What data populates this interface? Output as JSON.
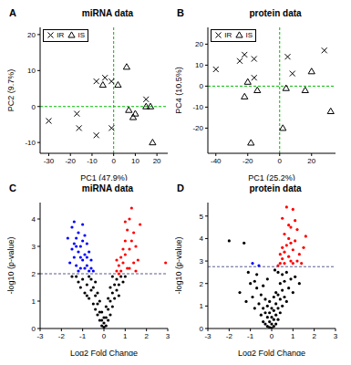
{
  "chart_data": [
    {
      "type": "scatter",
      "panel": "A",
      "title": "miRNA data",
      "x_label": "PC1 (47.9%)",
      "y_label": "PC2 (9.7%)",
      "xlim": [
        -34,
        25
      ],
      "ylim": [
        -13,
        22
      ],
      "xticks": [
        -30,
        -20,
        -10,
        0,
        10,
        20
      ],
      "yticks": [
        -10,
        0,
        10,
        20
      ],
      "legend": "top-left",
      "reference_lines": {
        "x": 0,
        "y": 0
      },
      "series": [
        {
          "name": "IR",
          "marker": "x",
          "color": "#000000",
          "points": [
            [
              -30,
              -4
            ],
            [
              -17,
              -2
            ],
            [
              -16,
              -6
            ],
            [
              -8,
              -8
            ],
            [
              -8,
              7
            ],
            [
              -4,
              8
            ],
            [
              -1,
              7
            ],
            [
              -1,
              -6
            ],
            [
              15,
              2
            ]
          ]
        },
        {
          "name": "IS",
          "marker": "triangle",
          "color": "#000000",
          "points": [
            [
              -5,
              6
            ],
            [
              2,
              6
            ],
            [
              6,
              11
            ],
            [
              7,
              -1
            ],
            [
              9,
              -3
            ],
            [
              15,
              0
            ],
            [
              17,
              0
            ],
            [
              18,
              -10
            ],
            [
              10,
              -2
            ]
          ]
        }
      ]
    },
    {
      "type": "scatter",
      "panel": "B",
      "title": "protein data",
      "x_label": "PC1 (25.2%)",
      "y_label": "PC4 (10.5%)",
      "xlim": [
        -45,
        35
      ],
      "ylim": [
        -32,
        28
      ],
      "xticks": [
        -40,
        -20,
        0,
        20
      ],
      "yticks": [
        -20,
        -10,
        0,
        10,
        20
      ],
      "legend": "top-left",
      "reference_lines": {
        "x": 0,
        "y": 0
      },
      "series": [
        {
          "name": "IR",
          "marker": "x",
          "color": "#000000",
          "points": [
            [
              -40,
              8
            ],
            [
              -25,
              12
            ],
            [
              -22,
              15
            ],
            [
              -16,
              13
            ],
            [
              -16,
              4
            ],
            [
              5,
              14
            ],
            [
              8,
              6
            ],
            [
              28,
              17
            ]
          ]
        },
        {
          "name": "IS",
          "marker": "triangle",
          "color": "#000000",
          "points": [
            [
              -22,
              -5
            ],
            [
              -18,
              -27
            ],
            [
              -14,
              -2
            ],
            [
              -20,
              2
            ],
            [
              2,
              -20
            ],
            [
              4,
              -1
            ],
            [
              16,
              -2
            ],
            [
              20,
              7
            ],
            [
              32,
              -12
            ]
          ]
        }
      ]
    },
    {
      "type": "scatter",
      "panel": "C",
      "title": "miRNA data",
      "x_label": "Log2 Fold Change",
      "y_label": "-log10 (p-value)",
      "xlim": [
        -3,
        3
      ],
      "ylim": [
        0,
        4.6
      ],
      "xticks": [
        -3,
        -2,
        -1,
        0,
        1,
        2,
        3
      ],
      "yticks": [
        0,
        1,
        2,
        3,
        4
      ],
      "reference_lines": {
        "y": 2
      },
      "series": [
        {
          "marker": "circle",
          "color": "#000000",
          "points": [
            [
              -1.3,
              1.9
            ],
            [
              -1.2,
              1.7
            ],
            [
              -1.1,
              1.5
            ],
            [
              -1.0,
              1.8
            ],
            [
              -0.9,
              1.3
            ],
            [
              -0.8,
              1.6
            ],
            [
              -0.7,
              1.1
            ],
            [
              -0.6,
              1.4
            ],
            [
              -0.5,
              0.9
            ],
            [
              -0.4,
              1.2
            ],
            [
              -0.4,
              0.7
            ],
            [
              -0.3,
              0.5
            ],
            [
              -0.3,
              0.9
            ],
            [
              -0.2,
              0.3
            ],
            [
              -0.2,
              0.6
            ],
            [
              -0.1,
              0.1
            ],
            [
              -0.1,
              0.3
            ],
            [
              0.0,
              0.05
            ],
            [
              0.0,
              0.2
            ],
            [
              0.1,
              0.1
            ],
            [
              0.1,
              0.4
            ],
            [
              0.2,
              0.3
            ],
            [
              0.2,
              0.7
            ],
            [
              0.3,
              0.5
            ],
            [
              0.3,
              1.0
            ],
            [
              0.4,
              0.8
            ],
            [
              0.4,
              1.3
            ],
            [
              0.5,
              1.1
            ],
            [
              0.5,
              1.6
            ],
            [
              0.6,
              1.4
            ],
            [
              0.6,
              1.8
            ],
            [
              0.7,
              1.6
            ],
            [
              0.8,
              1.9
            ],
            [
              0.9,
              1.7
            ],
            [
              1.0,
              1.9
            ],
            [
              -0.5,
              1.5
            ],
            [
              -0.6,
              1.8
            ],
            [
              -0.7,
              1.9
            ],
            [
              -0.4,
              1.7
            ],
            [
              -0.3,
              1.3
            ],
            [
              -0.2,
              1.0
            ],
            [
              -0.1,
              0.6
            ],
            [
              0.0,
              0.4
            ],
            [
              0.1,
              0.8
            ],
            [
              0.2,
              1.1
            ],
            [
              0.3,
              1.5
            ],
            [
              0.4,
              1.9
            ],
            [
              -1.5,
              1.9
            ],
            [
              -0.8,
              1.2
            ],
            [
              0.7,
              1.2
            ]
          ]
        },
        {
          "marker": "circle",
          "color": "#0000ff",
          "points": [
            [
              -1.5,
              3.7
            ],
            [
              -1.4,
              3.9
            ],
            [
              -1.3,
              3.3
            ],
            [
              -1.2,
              3.5
            ],
            [
              -1.1,
              3.0
            ],
            [
              -1.0,
              3.8
            ],
            [
              -0.9,
              3.4
            ],
            [
              -0.8,
              3.1
            ],
            [
              -0.7,
              2.8
            ],
            [
              -0.6,
              2.5
            ],
            [
              -1.5,
              2.9
            ],
            [
              -1.4,
              2.6
            ],
            [
              -1.3,
              2.3
            ],
            [
              -1.2,
              2.8
            ],
            [
              -1.1,
              2.2
            ],
            [
              -1.0,
              2.5
            ],
            [
              -0.9,
              2.7
            ],
            [
              -0.8,
              2.3
            ],
            [
              -0.7,
              2.1
            ],
            [
              -0.6,
              2.2
            ],
            [
              -1.6,
              2.4
            ],
            [
              -1.3,
              3.0
            ],
            [
              -1.2,
              2.1
            ],
            [
              -1.0,
              3.2
            ],
            [
              -0.9,
              2.2
            ],
            [
              -0.8,
              2.6
            ],
            [
              -1.4,
              3.1
            ],
            [
              -1.1,
              2.6
            ],
            [
              -0.5,
              2.1
            ],
            [
              -1.7,
              3.3
            ]
          ]
        },
        {
          "marker": "circle",
          "color": "#ff0000",
          "points": [
            [
              0.6,
              2.1
            ],
            [
              0.7,
              2.3
            ],
            [
              0.8,
              2.6
            ],
            [
              0.9,
              2.9
            ],
            [
              1.0,
              3.2
            ],
            [
              1.1,
              3.6
            ],
            [
              1.2,
              4.0
            ],
            [
              1.3,
              4.4
            ],
            [
              1.4,
              3.5
            ],
            [
              1.5,
              3.0
            ],
            [
              1.6,
              2.5
            ],
            [
              0.8,
              2.1
            ],
            [
              0.9,
              2.4
            ],
            [
              1.0,
              2.7
            ],
            [
              1.1,
              2.2
            ],
            [
              1.2,
              2.9
            ],
            [
              1.3,
              3.2
            ],
            [
              1.4,
              2.4
            ],
            [
              1.5,
              2.1
            ],
            [
              1.7,
              3.8
            ],
            [
              0.7,
              2.0
            ],
            [
              1.0,
              3.9
            ],
            [
              2.9,
              2.4
            ],
            [
              0.6,
              2.5
            ],
            [
              1.2,
              2.2
            ]
          ]
        }
      ]
    },
    {
      "type": "scatter",
      "panel": "D",
      "title": "protein data",
      "x_label": "Log2 Fold Change",
      "y_label": "-log10 (p-value)",
      "xlim": [
        -3,
        3
      ],
      "ylim": [
        0,
        5.6
      ],
      "xticks": [
        -3,
        -2,
        -1,
        0,
        1,
        2,
        3
      ],
      "yticks": [
        0,
        1,
        2,
        3,
        4,
        5
      ],
      "reference_lines": {
        "y": 2.75
      },
      "series": [
        {
          "marker": "circle",
          "color": "#000000",
          "points": [
            [
              -2.0,
              3.9
            ],
            [
              -1.3,
              3.8
            ],
            [
              -1.5,
              1.6
            ],
            [
              -1.2,
              1.2
            ],
            [
              -1.0,
              2.0
            ],
            [
              -0.9,
              1.4
            ],
            [
              -0.8,
              0.9
            ],
            [
              -0.7,
              1.8
            ],
            [
              -0.6,
              1.1
            ],
            [
              -0.5,
              0.6
            ],
            [
              -0.5,
              1.5
            ],
            [
              -0.4,
              0.3
            ],
            [
              -0.4,
              0.9
            ],
            [
              -0.3,
              0.2
            ],
            [
              -0.3,
              0.7
            ],
            [
              -0.3,
              1.3
            ],
            [
              -0.2,
              0.1
            ],
            [
              -0.2,
              0.5
            ],
            [
              -0.2,
              1.0
            ],
            [
              -0.1,
              0.05
            ],
            [
              -0.1,
              0.3
            ],
            [
              -0.1,
              0.7
            ],
            [
              0.0,
              0.02
            ],
            [
              0.0,
              0.2
            ],
            [
              0.0,
              0.5
            ],
            [
              0.1,
              0.1
            ],
            [
              0.1,
              0.4
            ],
            [
              0.1,
              0.8
            ],
            [
              0.2,
              0.2
            ],
            [
              0.2,
              0.6
            ],
            [
              0.2,
              1.1
            ],
            [
              0.3,
              0.4
            ],
            [
              0.3,
              0.9
            ],
            [
              0.3,
              1.5
            ],
            [
              0.4,
              0.7
            ],
            [
              0.4,
              1.3
            ],
            [
              0.4,
              2.0
            ],
            [
              0.5,
              1.0
            ],
            [
              0.5,
              1.7
            ],
            [
              0.5,
              2.4
            ],
            [
              0.6,
              1.4
            ],
            [
              0.6,
              2.1
            ],
            [
              0.7,
              1.2
            ],
            [
              0.7,
              2.5
            ],
            [
              0.8,
              1.8
            ],
            [
              0.9,
              2.2
            ],
            [
              1.0,
              1.6
            ],
            [
              1.1,
              2.3
            ],
            [
              1.3,
              2.0
            ],
            [
              -0.7,
              2.4
            ],
            [
              -0.8,
              2.1
            ],
            [
              -1.1,
              2.5
            ],
            [
              0.2,
              1.6
            ],
            [
              -0.1,
              1.2
            ],
            [
              0.0,
              0.9
            ],
            [
              0.1,
              1.4
            ],
            [
              -0.4,
              1.9
            ],
            [
              0.3,
              2.5
            ],
            [
              -0.2,
              2.2
            ],
            [
              0.15,
              2.6
            ]
          ]
        },
        {
          "marker": "circle",
          "color": "#0000ff",
          "points": [
            [
              -0.9,
              2.9
            ],
            [
              -0.6,
              2.8
            ]
          ]
        },
        {
          "marker": "circle",
          "color": "#ff0000",
          "points": [
            [
              0.4,
              2.9
            ],
            [
              0.5,
              3.1
            ],
            [
              0.6,
              3.4
            ],
            [
              0.7,
              3.7
            ],
            [
              0.8,
              4.0
            ],
            [
              0.9,
              4.5
            ],
            [
              1.0,
              5.3
            ],
            [
              1.1,
              4.8
            ],
            [
              0.7,
              5.4
            ],
            [
              0.6,
              4.2
            ],
            [
              0.5,
              3.6
            ],
            [
              0.8,
              3.2
            ],
            [
              0.9,
              3.0
            ],
            [
              1.0,
              3.5
            ],
            [
              1.1,
              3.9
            ],
            [
              1.2,
              4.4
            ],
            [
              1.3,
              3.3
            ],
            [
              1.4,
              2.9
            ],
            [
              0.3,
              2.8
            ],
            [
              0.4,
              3.3
            ],
            [
              0.9,
              3.8
            ],
            [
              1.0,
              2.9
            ],
            [
              0.6,
              2.9
            ],
            [
              0.8,
              4.6
            ],
            [
              1.5,
              3.6
            ],
            [
              1.2,
              3.0
            ],
            [
              1.6,
              4.1
            ],
            [
              0.5,
              4.9
            ]
          ]
        }
      ]
    }
  ]
}
